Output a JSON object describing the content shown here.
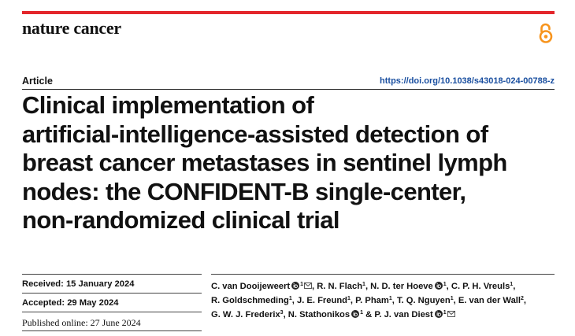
{
  "header": {
    "journal": "nature cancer",
    "open_access_icon": "open-access-lock-icon",
    "accent_color": "#e3262b"
  },
  "article": {
    "type": "Article",
    "doi": "https://doi.org/10.1038/s43018-024-00788-z",
    "title_lines": [
      "Clinical implementation of",
      "artificial-intelligence-assisted detection of",
      "breast cancer metastases in sentinel lymph",
      "nodes: the CONFIDENT-B single-center,",
      "non-randomized clinical trial"
    ]
  },
  "dates": {
    "received": "Received: 15 January 2024",
    "accepted": "Accepted: 29 May 2024",
    "published": "Published online: 27 June 2024"
  },
  "authors": [
    {
      "name": "C. van Dooijeweert",
      "orcid": true,
      "aff": "1",
      "mail": true,
      "sep": ","
    },
    {
      "name": "R. N. Flach",
      "orcid": false,
      "aff": "1",
      "mail": false,
      "sep": ","
    },
    {
      "name": "N. D. ter Hoeve",
      "orcid": true,
      "aff": "1",
      "mail": false,
      "sep": ","
    },
    {
      "name": "C. P. H. Vreuls",
      "orcid": false,
      "aff": "1",
      "mail": false,
      "sep": ","
    },
    {
      "name": "R. Goldschmeding",
      "orcid": false,
      "aff": "1",
      "mail": false,
      "sep": ","
    },
    {
      "name": "J. E. Freund",
      "orcid": false,
      "aff": "1",
      "mail": false,
      "sep": ","
    },
    {
      "name": "P. Pham",
      "orcid": false,
      "aff": "1",
      "mail": false,
      "sep": ","
    },
    {
      "name": "T. Q. Nguyen",
      "orcid": false,
      "aff": "1",
      "mail": false,
      "sep": ","
    },
    {
      "name": "E. van der Wall",
      "orcid": false,
      "aff": "2",
      "mail": false,
      "sep": ","
    },
    {
      "name": "G. W. J. Frederix",
      "orcid": false,
      "aff": "3",
      "mail": false,
      "sep": ","
    },
    {
      "name": "N. Stathonikos",
      "orcid": true,
      "aff": "1",
      "mail": false,
      "sep": " &"
    },
    {
      "name": "P. J. van Diest",
      "orcid": true,
      "aff": "1",
      "mail": true,
      "sep": ""
    }
  ],
  "icons": {
    "orcid": "orcid-icon",
    "mail": "mail-icon"
  }
}
